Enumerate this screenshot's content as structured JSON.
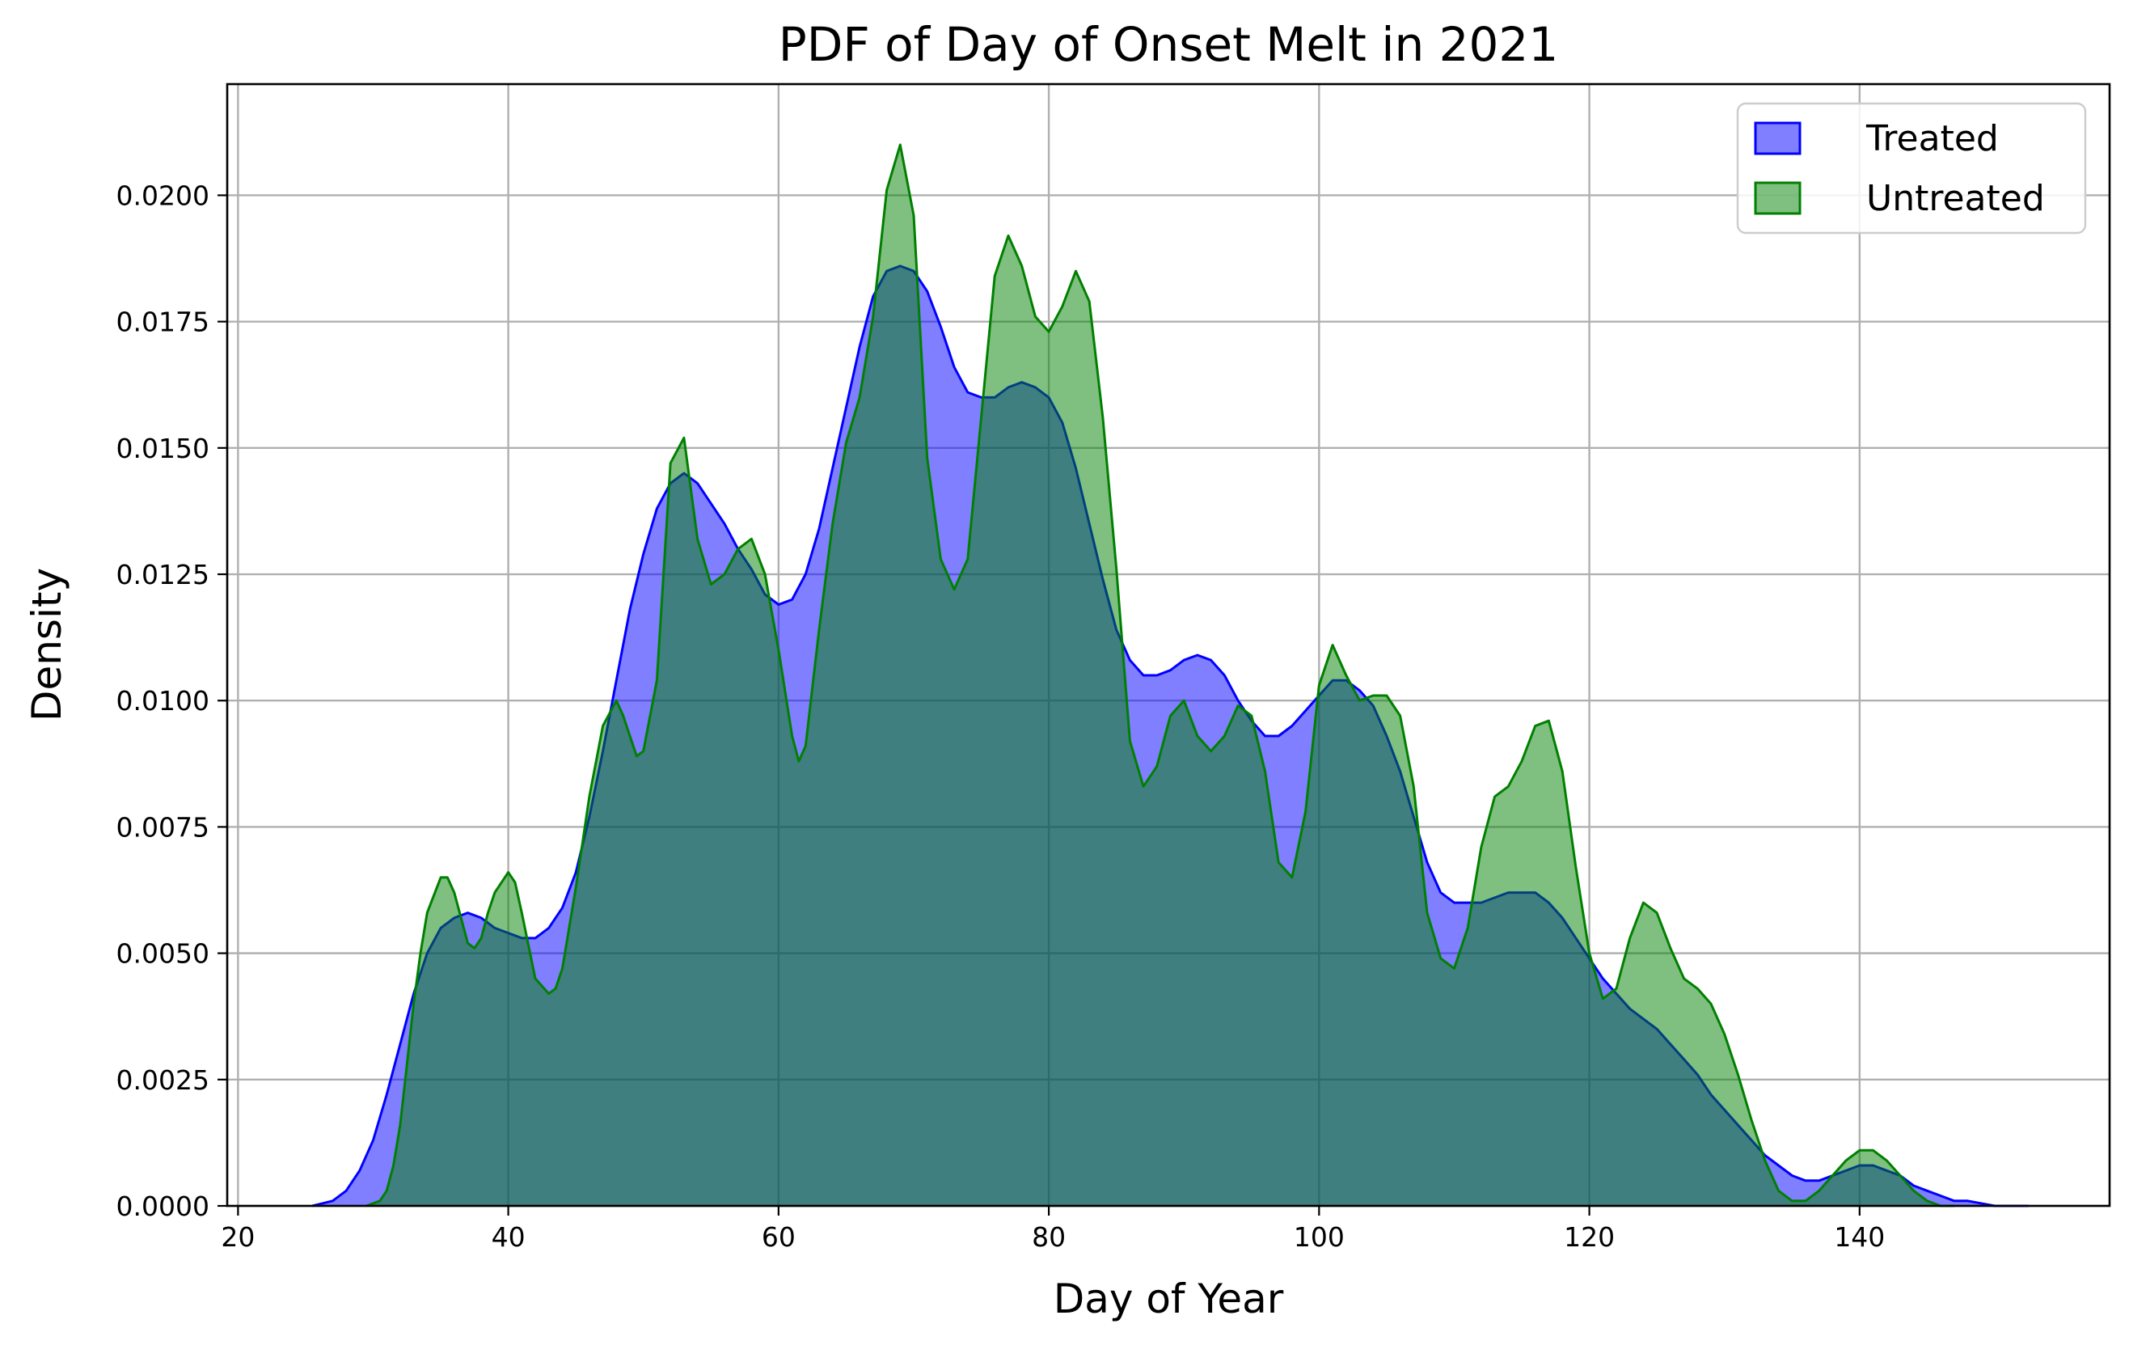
{
  "chart_data": {
    "type": "area",
    "title": "PDF of Day of Onset Melt in 2021",
    "xlabel": "Day of Year",
    "ylabel": "Density",
    "xlim": [
      19.2,
      158.5
    ],
    "ylim": [
      0,
      0.0222
    ],
    "xticks": [
      20,
      40,
      60,
      80,
      100,
      120,
      140
    ],
    "xtick_labels": [
      "20",
      "40",
      "60",
      "80",
      "100",
      "120",
      "140"
    ],
    "yticks": [
      0,
      0.0025,
      0.005,
      0.0075,
      0.01,
      0.0125,
      0.015,
      0.0175,
      0.02
    ],
    "ytick_labels": [
      "0.0000",
      "0.0025",
      "0.0050",
      "0.0075",
      "0.0100",
      "0.0125",
      "0.0150",
      "0.0175",
      "0.0200"
    ],
    "grid": true,
    "legend_position": "top-right",
    "series": [
      {
        "name": "Treated",
        "color": "#0000ff",
        "x": [
          25.5,
          27,
          28,
          29,
          30,
          31,
          32,
          33,
          34,
          35,
          36,
          37,
          38,
          39,
          40,
          41,
          42,
          43,
          44,
          45,
          46,
          47,
          48,
          49,
          50,
          51,
          52,
          53,
          54,
          55,
          56,
          57,
          58,
          59,
          60,
          61,
          62,
          63,
          64,
          65,
          66,
          67,
          68,
          69,
          70,
          71,
          72,
          73,
          74,
          75,
          76,
          77,
          78,
          79,
          80,
          81,
          82,
          83,
          84,
          85,
          86,
          87,
          88,
          89,
          90,
          91,
          92,
          93,
          94,
          95,
          96,
          97,
          98,
          99,
          100,
          101,
          102,
          103,
          104,
          105,
          106,
          107,
          108,
          109,
          110,
          111,
          112,
          113,
          114,
          115,
          116,
          117,
          118,
          119,
          120,
          121,
          122,
          123,
          124,
          125,
          126,
          127,
          128,
          129,
          130,
          131,
          132,
          133,
          134,
          135,
          136,
          137,
          138,
          139,
          140,
          141,
          142,
          143,
          144,
          145,
          146,
          147,
          148,
          150,
          152.5
        ],
        "y": [
          0.0,
          0.0001,
          0.0003,
          0.0007,
          0.0013,
          0.0022,
          0.0032,
          0.0042,
          0.005,
          0.0055,
          0.0057,
          0.0058,
          0.0057,
          0.0055,
          0.0054,
          0.0053,
          0.0053,
          0.0055,
          0.0059,
          0.0066,
          0.0077,
          0.009,
          0.0104,
          0.0118,
          0.0129,
          0.0138,
          0.0143,
          0.0145,
          0.0143,
          0.0139,
          0.0135,
          0.013,
          0.0126,
          0.0121,
          0.0119,
          0.012,
          0.0125,
          0.0134,
          0.0146,
          0.0158,
          0.017,
          0.018,
          0.0185,
          0.0186,
          0.0185,
          0.0181,
          0.0174,
          0.0166,
          0.0161,
          0.016,
          0.016,
          0.0162,
          0.0163,
          0.0162,
          0.016,
          0.0155,
          0.0146,
          0.0135,
          0.0124,
          0.0114,
          0.0108,
          0.0105,
          0.0105,
          0.0106,
          0.0108,
          0.0109,
          0.0108,
          0.0105,
          0.01,
          0.0096,
          0.0093,
          0.0093,
          0.0095,
          0.0098,
          0.0101,
          0.0104,
          0.0104,
          0.0102,
          0.0099,
          0.0093,
          0.0086,
          0.0077,
          0.0068,
          0.0062,
          0.006,
          0.006,
          0.006,
          0.0061,
          0.0062,
          0.0062,
          0.0062,
          0.006,
          0.0057,
          0.0053,
          0.0049,
          0.0045,
          0.0042,
          0.0039,
          0.0037,
          0.0035,
          0.0032,
          0.0029,
          0.0026,
          0.0022,
          0.0019,
          0.0016,
          0.0013,
          0.001,
          0.0008,
          0.0006,
          0.0005,
          0.0005,
          0.0006,
          0.0007,
          0.0008,
          0.0008,
          0.0007,
          0.0006,
          0.0004,
          0.0003,
          0.0002,
          0.0001,
          0.0001,
          0.0,
          0.0
        ]
      },
      {
        "name": "Untreated",
        "color": "#008000",
        "x": [
          29.5,
          30.5,
          31,
          31.5,
          32,
          32.5,
          33,
          33.5,
          34,
          35,
          35.5,
          36,
          37,
          37.5,
          38,
          38.5,
          39,
          40,
          40.5,
          41,
          42,
          43,
          43.5,
          44,
          45,
          46,
          47,
          48,
          48.5,
          49,
          49.5,
          50,
          51,
          52,
          53,
          54,
          55,
          56,
          57,
          58,
          59,
          60,
          61,
          61.5,
          62,
          63,
          64,
          65,
          66,
          67,
          68,
          69,
          70,
          71,
          72,
          73,
          74,
          75,
          76,
          77,
          78,
          79,
          80,
          81,
          82,
          83,
          84,
          85,
          86,
          87,
          88,
          89,
          90,
          91,
          92,
          93,
          94,
          95,
          96,
          97,
          98,
          99,
          100,
          101,
          102,
          103,
          104,
          105,
          106,
          107,
          108,
          109,
          110,
          111,
          112,
          113,
          114,
          115,
          116,
          117,
          118,
          119,
          120,
          121,
          122,
          123,
          124,
          125,
          126,
          127,
          128,
          129,
          130,
          131,
          132,
          133,
          134,
          135,
          136,
          137,
          138,
          139,
          140,
          141,
          142,
          143,
          144,
          145,
          146,
          147
        ],
        "y": [
          0.0,
          0.0001,
          0.0003,
          0.0008,
          0.0016,
          0.0028,
          0.004,
          0.005,
          0.0058,
          0.0065,
          0.0065,
          0.0062,
          0.0052,
          0.0051,
          0.0053,
          0.0058,
          0.0062,
          0.0066,
          0.0064,
          0.0058,
          0.0045,
          0.0042,
          0.0043,
          0.0047,
          0.0063,
          0.0081,
          0.0095,
          0.01,
          0.0097,
          0.0093,
          0.0089,
          0.009,
          0.0104,
          0.0147,
          0.0152,
          0.0132,
          0.0123,
          0.0125,
          0.013,
          0.0132,
          0.0125,
          0.011,
          0.0093,
          0.0088,
          0.0091,
          0.0114,
          0.0135,
          0.0151,
          0.016,
          0.0176,
          0.0201,
          0.021,
          0.0196,
          0.0148,
          0.0128,
          0.0122,
          0.0128,
          0.0156,
          0.0184,
          0.0192,
          0.0186,
          0.0176,
          0.0173,
          0.0178,
          0.0185,
          0.0179,
          0.0156,
          0.0126,
          0.0092,
          0.0083,
          0.0087,
          0.0097,
          0.01,
          0.0093,
          0.009,
          0.0093,
          0.0099,
          0.0097,
          0.0086,
          0.0068,
          0.0065,
          0.0078,
          0.0103,
          0.0111,
          0.0105,
          0.01,
          0.0101,
          0.0101,
          0.0097,
          0.0083,
          0.0058,
          0.0049,
          0.0047,
          0.0055,
          0.0071,
          0.0081,
          0.0083,
          0.0088,
          0.0095,
          0.0096,
          0.0086,
          0.0067,
          0.005,
          0.0041,
          0.0043,
          0.0053,
          0.006,
          0.0058,
          0.0051,
          0.0045,
          0.0043,
          0.004,
          0.0034,
          0.0026,
          0.0017,
          0.0009,
          0.0003,
          0.0001,
          0.0001,
          0.0003,
          0.0006,
          0.0009,
          0.0011,
          0.0011,
          0.0009,
          0.0006,
          0.0003,
          0.0001,
          0.0,
          0.0
        ]
      }
    ]
  }
}
